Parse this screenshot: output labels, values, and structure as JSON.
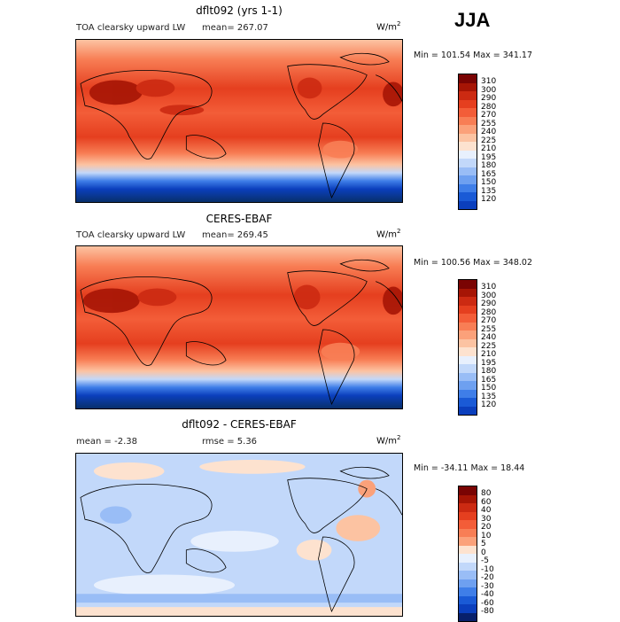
{
  "season": "JJA",
  "colors": {
    "abs_scale": [
      "#08306b",
      "#0b3fbd",
      "#1a5ad6",
      "#3f7ee8",
      "#6ea0f0",
      "#99bdf6",
      "#c2d8fa",
      "#e8f0fd",
      "#fde2cf",
      "#fcc3a2",
      "#fba17a",
      "#f87e55",
      "#f35d38",
      "#e53f1f",
      "#cc2a12",
      "#a61505",
      "#7a0403"
    ],
    "diff_scale": [
      "#08206b",
      "#0b3fbd",
      "#1a5ad6",
      "#3f7ee8",
      "#6ea0f0",
      "#99bdf6",
      "#c2d8fa",
      "#e8f0fd",
      "#fde2cf",
      "#fcc3a2",
      "#fba17a",
      "#f87e55",
      "#f35d38",
      "#e53f1f",
      "#cc2a12",
      "#a61505",
      "#7a0403"
    ]
  },
  "panels": [
    {
      "title": "dflt092 (yrs 1-1)",
      "subtitle_left": "TOA clearsky upward LW",
      "mean_text": "mean= 267.07",
      "units": "W/m",
      "units_exp": "2",
      "minmax": "Min = 101.54 Max = 341.17",
      "levels": [
        "310",
        "300",
        "290",
        "280",
        "270",
        "255",
        "240",
        "225",
        "210",
        "195",
        "180",
        "165",
        "150",
        "135",
        "120"
      ],
      "kind": "abs"
    },
    {
      "title": "CERES-EBAF",
      "subtitle_left": "TOA clearsky upward LW",
      "mean_text": "mean= 269.45",
      "units": "W/m",
      "units_exp": "2",
      "minmax": "Min = 100.56 Max = 348.02",
      "levels": [
        "310",
        "300",
        "290",
        "280",
        "270",
        "255",
        "240",
        "225",
        "210",
        "195",
        "180",
        "165",
        "150",
        "135",
        "120"
      ],
      "kind": "abs"
    },
    {
      "title": "dflt092 - CERES-EBAF",
      "mean_text": "mean =   -2.38",
      "rmse_text": "rmse =    5.36",
      "units": "W/m",
      "units_exp": "2",
      "minmax": "Min = -34.11 Max =  18.44",
      "levels": [
        "80",
        "60",
        "40",
        "30",
        "20",
        "10",
        "5",
        "0",
        "-5",
        "-10",
        "-20",
        "-30",
        "-40",
        "-60",
        "-80"
      ],
      "kind": "diff"
    }
  ]
}
